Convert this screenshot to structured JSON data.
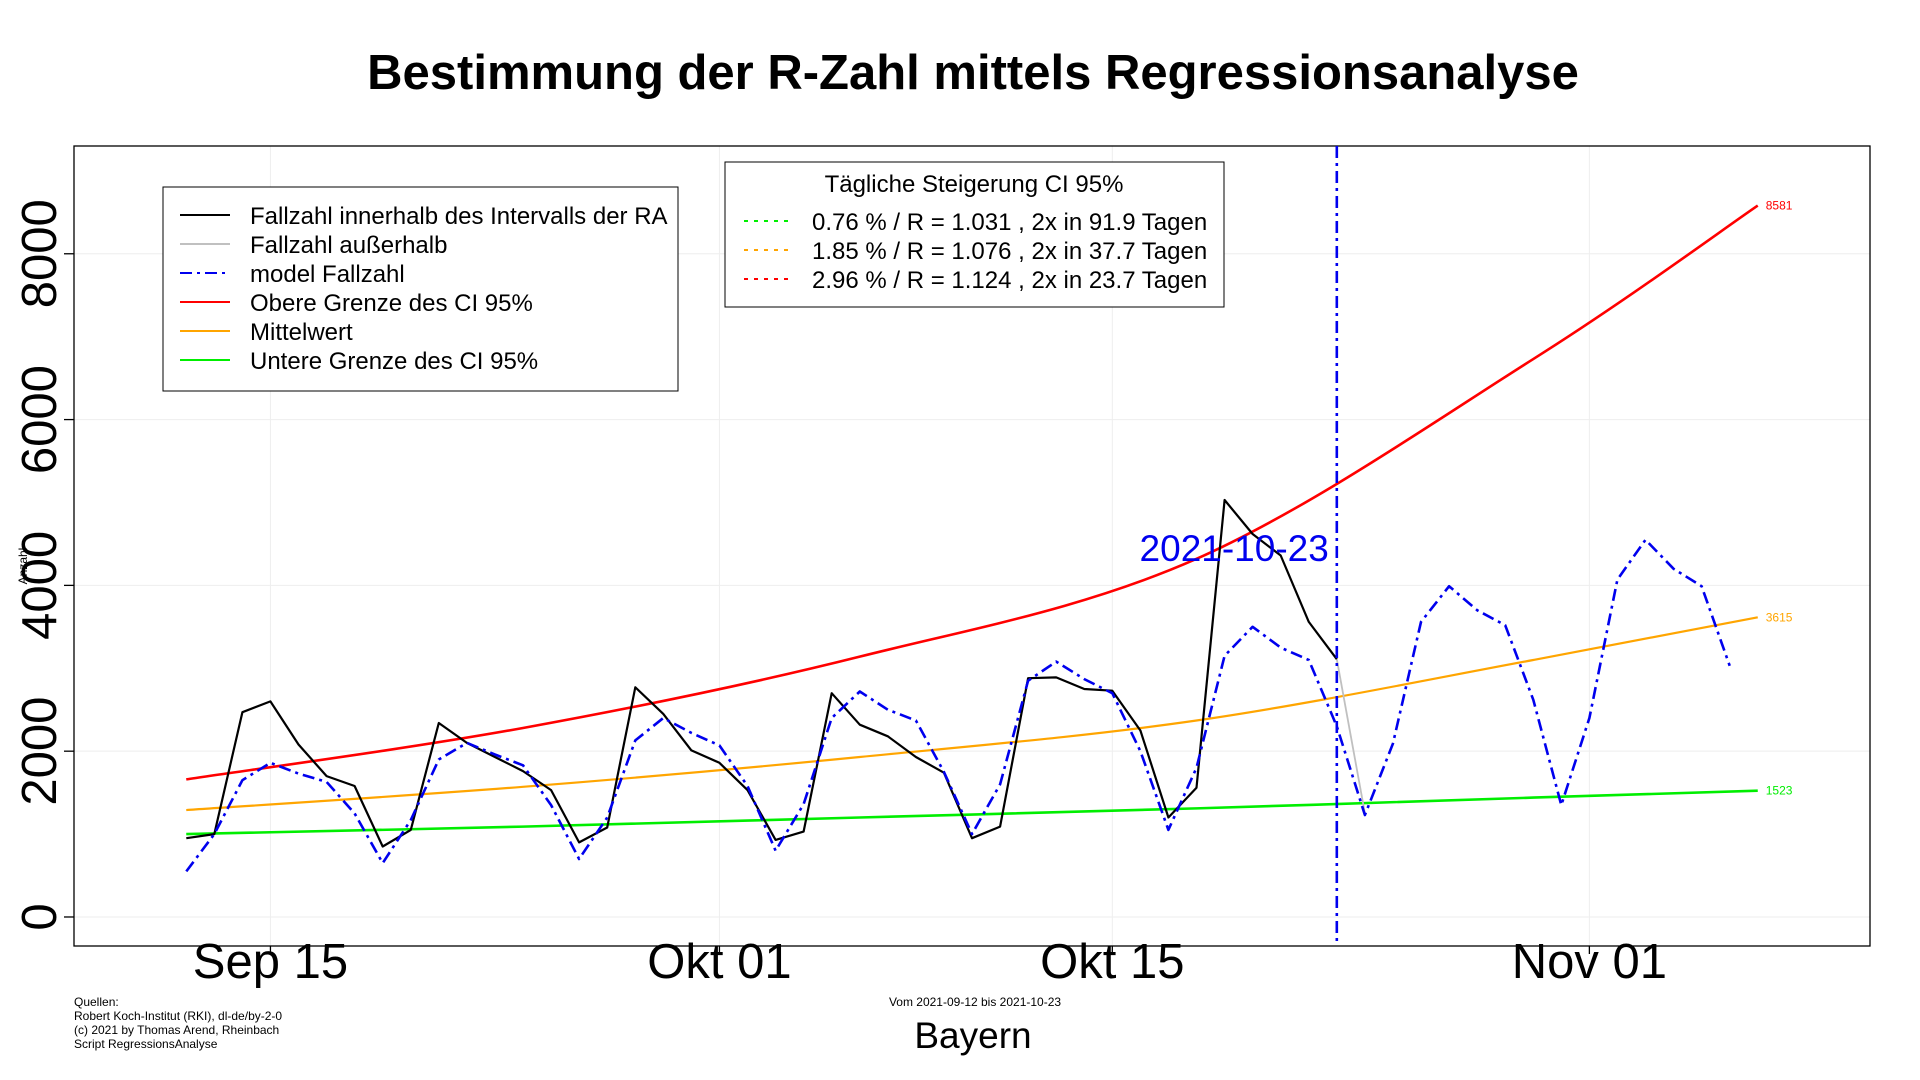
{
  "colors": {
    "inside": "#000000",
    "outside": "#c0c0c0",
    "model": "#0000ee",
    "upper": "#ff0000",
    "mean": "#ffa500",
    "lower": "#00ee00",
    "grid": "#eeeeee"
  },
  "chart_data": {
    "type": "line",
    "title": "Bestimmung der R-Zahl mittels Regressionsanalyse",
    "xlabel": "Bayern",
    "ylabel": "Anzahl",
    "ylim": [
      -350,
      9300
    ],
    "xlim": [
      "2021-09-08",
      "2021-11-11"
    ],
    "grid": true,
    "x_ticks": [
      {
        "date": "2021-09-15",
        "label": "Sep 15"
      },
      {
        "date": "2021-10-01",
        "label": "Okt 01"
      },
      {
        "date": "2021-10-15",
        "label": "Okt 15"
      },
      {
        "date": "2021-11-01",
        "label": "Nov 01"
      }
    ],
    "y_ticks": [
      0,
      2000,
      4000,
      6000,
      8000
    ],
    "y_tick_labels": [
      "0",
      "2000",
      "4000",
      "6000",
      "8000"
    ],
    "vline": {
      "date": "2021-10-23",
      "label": "2021-10-23"
    },
    "series": [
      {
        "name": "Fallzahl innerhalb des Intervalls der RA",
        "style": "solid",
        "dates": [
          "2021-09-12",
          "2021-09-13",
          "2021-09-14",
          "2021-09-15",
          "2021-09-16",
          "2021-09-17",
          "2021-09-18",
          "2021-09-19",
          "2021-09-20",
          "2021-09-21",
          "2021-09-22",
          "2021-09-23",
          "2021-09-24",
          "2021-09-25",
          "2021-09-26",
          "2021-09-27",
          "2021-09-28",
          "2021-09-29",
          "2021-09-30",
          "2021-10-01",
          "2021-10-02",
          "2021-10-03",
          "2021-10-04",
          "2021-10-05",
          "2021-10-06",
          "2021-10-07",
          "2021-10-08",
          "2021-10-09",
          "2021-10-10",
          "2021-10-11",
          "2021-10-12",
          "2021-10-13",
          "2021-10-14",
          "2021-10-15",
          "2021-10-16",
          "2021-10-17",
          "2021-10-18",
          "2021-10-19",
          "2021-10-20",
          "2021-10-21",
          "2021-10-22",
          "2021-10-23"
        ],
        "values": [
          950,
          1000,
          2470,
          2600,
          2080,
          1700,
          1580,
          850,
          1050,
          2340,
          2100,
          1930,
          1760,
          1530,
          900,
          1080,
          2770,
          2450,
          2010,
          1860,
          1530,
          930,
          1030,
          2700,
          2320,
          2180,
          1930,
          1740,
          950,
          1090,
          2880,
          2890,
          2750,
          2730,
          2250,
          1200,
          1560,
          5030,
          4620,
          4360,
          3560,
          3110
        ]
      },
      {
        "name": "Fallzahl außerhalb",
        "style": "solid",
        "dates": [
          "2021-10-23",
          "2021-10-24"
        ],
        "values": [
          3110,
          1250
        ]
      },
      {
        "name": "model Fallzahl",
        "style": "dashdot",
        "dates": [
          "2021-09-12",
          "2021-09-13",
          "2021-09-14",
          "2021-09-15",
          "2021-09-16",
          "2021-09-17",
          "2021-09-18",
          "2021-09-19",
          "2021-09-20",
          "2021-09-21",
          "2021-09-22",
          "2021-09-23",
          "2021-09-24",
          "2021-09-25",
          "2021-09-26",
          "2021-09-27",
          "2021-09-28",
          "2021-09-29",
          "2021-09-30",
          "2021-10-01",
          "2021-10-02",
          "2021-10-03",
          "2021-10-04",
          "2021-10-05",
          "2021-10-06",
          "2021-10-07",
          "2021-10-08",
          "2021-10-09",
          "2021-10-10",
          "2021-10-11",
          "2021-10-12",
          "2021-10-13",
          "2021-10-14",
          "2021-10-15",
          "2021-10-16",
          "2021-10-17",
          "2021-10-18",
          "2021-10-19",
          "2021-10-20",
          "2021-10-21",
          "2021-10-22",
          "2021-10-23",
          "2021-10-24",
          "2021-10-25",
          "2021-10-26",
          "2021-10-27",
          "2021-10-28",
          "2021-10-29",
          "2021-10-30",
          "2021-10-31",
          "2021-11-01",
          "2021-11-02",
          "2021-11-03",
          "2021-11-04",
          "2021-11-05",
          "2021-11-06"
        ],
        "values": [
          550,
          1000,
          1650,
          1860,
          1730,
          1630,
          1250,
          650,
          1170,
          1900,
          2100,
          1960,
          1830,
          1350,
          700,
          1200,
          2130,
          2400,
          2220,
          2070,
          1580,
          800,
          1360,
          2400,
          2720,
          2500,
          2370,
          1750,
          1000,
          1600,
          2850,
          3080,
          2870,
          2700,
          2000,
          1050,
          1800,
          3150,
          3500,
          3250,
          3100,
          2300,
          1230,
          2090,
          3560,
          3990,
          3700,
          3520,
          2620,
          1350,
          2400,
          4070,
          4550,
          4200,
          3990,
          3030
        ]
      },
      {
        "name": "Obere Grenze des CI 95%",
        "style": "solid",
        "dates": [
          "2021-09-12",
          "2021-09-24",
          "2021-10-06",
          "2021-10-18",
          "2021-10-30",
          "2021-11-07"
        ],
        "values": [
          1660,
          2280,
          3140,
          4320,
          6730,
          8581
        ]
      },
      {
        "name": "Mittelwert",
        "style": "solid",
        "dates": [
          "2021-09-12",
          "2021-09-24",
          "2021-10-06",
          "2021-10-18",
          "2021-10-30",
          "2021-11-07"
        ],
        "values": [
          1290,
          1570,
          1930,
          2370,
          3100,
          3615
        ]
      },
      {
        "name": "Untere Grenze des CI 95%",
        "style": "solid",
        "dates": [
          "2021-09-12",
          "2021-09-24",
          "2021-10-06",
          "2021-10-18",
          "2021-10-30",
          "2021-11-07"
        ],
        "values": [
          1000,
          1090,
          1200,
          1310,
          1440,
          1523
        ]
      }
    ],
    "end_labels": [
      {
        "series": "upper",
        "date": "2021-11-07",
        "value": 8581,
        "text": "8581"
      },
      {
        "series": "mean",
        "date": "2021-11-07",
        "value": 3615,
        "text": "3615"
      },
      {
        "series": "lower",
        "date": "2021-11-07",
        "value": 1523,
        "text": "1523"
      }
    ],
    "legend": {
      "position": "top-left",
      "entries": [
        {
          "label": "Fallzahl innerhalb des Intervalls der RA",
          "color": "#000000",
          "style": "solid"
        },
        {
          "label": "Fallzahl außerhalb",
          "color": "#c0c0c0",
          "style": "solid"
        },
        {
          "label": "model Fallzahl",
          "color": "#0000ee",
          "style": "dashdot"
        },
        {
          "label": "Obere Grenze des CI 95%",
          "color": "#ff0000",
          "style": "solid"
        },
        {
          "label": "Mittelwert",
          "color": "#ffa500",
          "style": "solid"
        },
        {
          "label": "Untere Grenze des CI 95%",
          "color": "#00ee00",
          "style": "solid"
        }
      ]
    },
    "legend2": {
      "position": "top-center",
      "title": "Tägliche Steigerung CI  95%",
      "entries": [
        {
          "label": "0.76 % / R = 1.031 , 2x in 91.9 Tagen",
          "color": "#00ee00",
          "style": "dotted"
        },
        {
          "label": "1.85 % / R = 1.076 , 2x in 37.7 Tagen",
          "color": "#ffa500",
          "style": "dotted"
        },
        {
          "label": "2.96 % / R = 1.124 , 2x in 23.7 Tagen",
          "color": "#ff0000",
          "style": "dotted"
        }
      ]
    }
  },
  "footer": {
    "sources_heading": "Quellen:",
    "source_1": "Robert Koch-Institut (RKI), dl-de/by-2-0",
    "copyright": "(c) 2021 by Thomas Arend, Rheinbach",
    "script": "Script RegressionsAnalyse",
    "range": "Vom 2021-09-12 bis 2021-10-23"
  }
}
